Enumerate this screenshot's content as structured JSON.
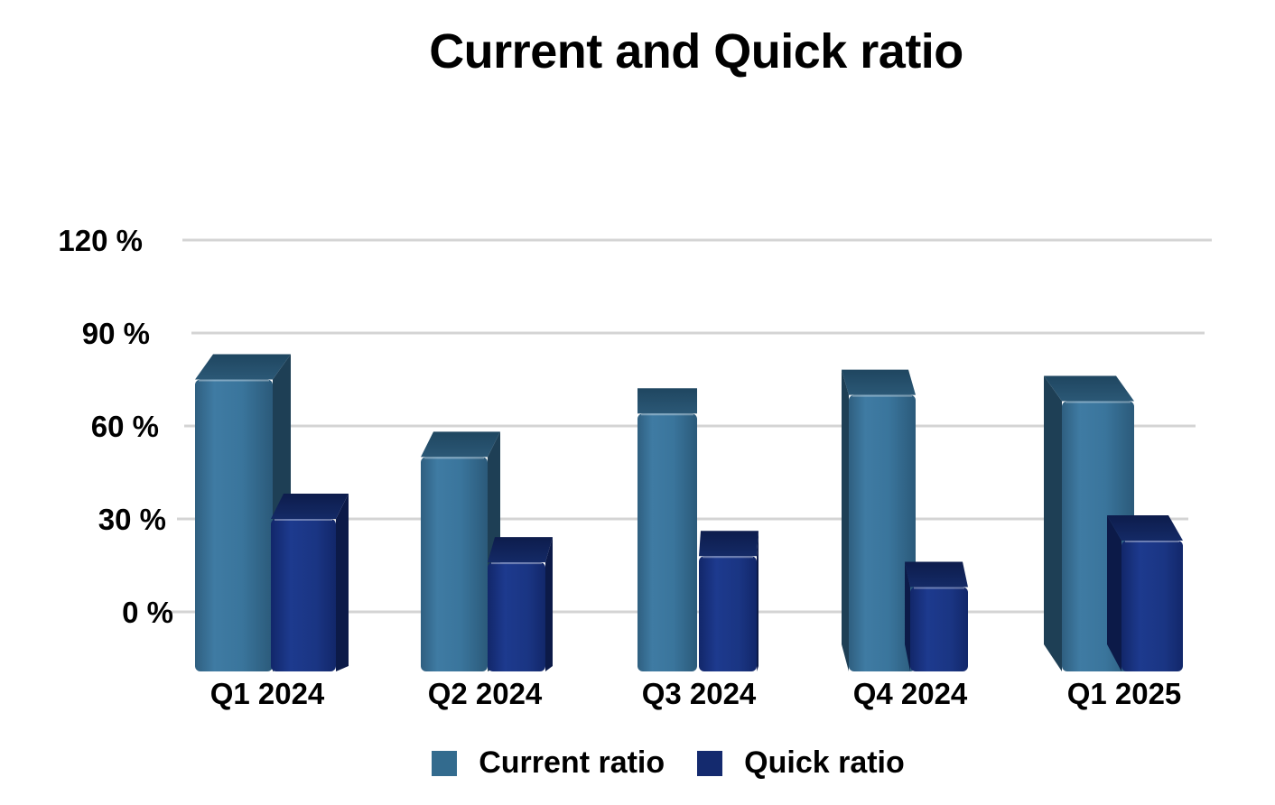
{
  "chart_data": {
    "type": "bar",
    "title": "Current and Quick ratio",
    "categories": [
      "Q1 2024",
      "Q2 2024",
      "Q3 2024",
      "Q4 2024",
      "Q1 2025"
    ],
    "series": [
      {
        "name": "Current ratio",
        "color": "#336b8e",
        "values": [
          75,
          50,
          64,
          70,
          68
        ]
      },
      {
        "name": "Quick ratio",
        "color": "#142a6e",
        "values": [
          30,
          16,
          18,
          8,
          23
        ]
      }
    ],
    "y_ticks": [
      "0 %",
      "30 %",
      "60 %",
      "90 %",
      "120 %"
    ],
    "y_tick_values": [
      0,
      30,
      60,
      90,
      120
    ],
    "ylim": [
      0,
      120
    ],
    "grid": true,
    "legend": "bottom",
    "xlabel": "",
    "ylabel": ""
  }
}
